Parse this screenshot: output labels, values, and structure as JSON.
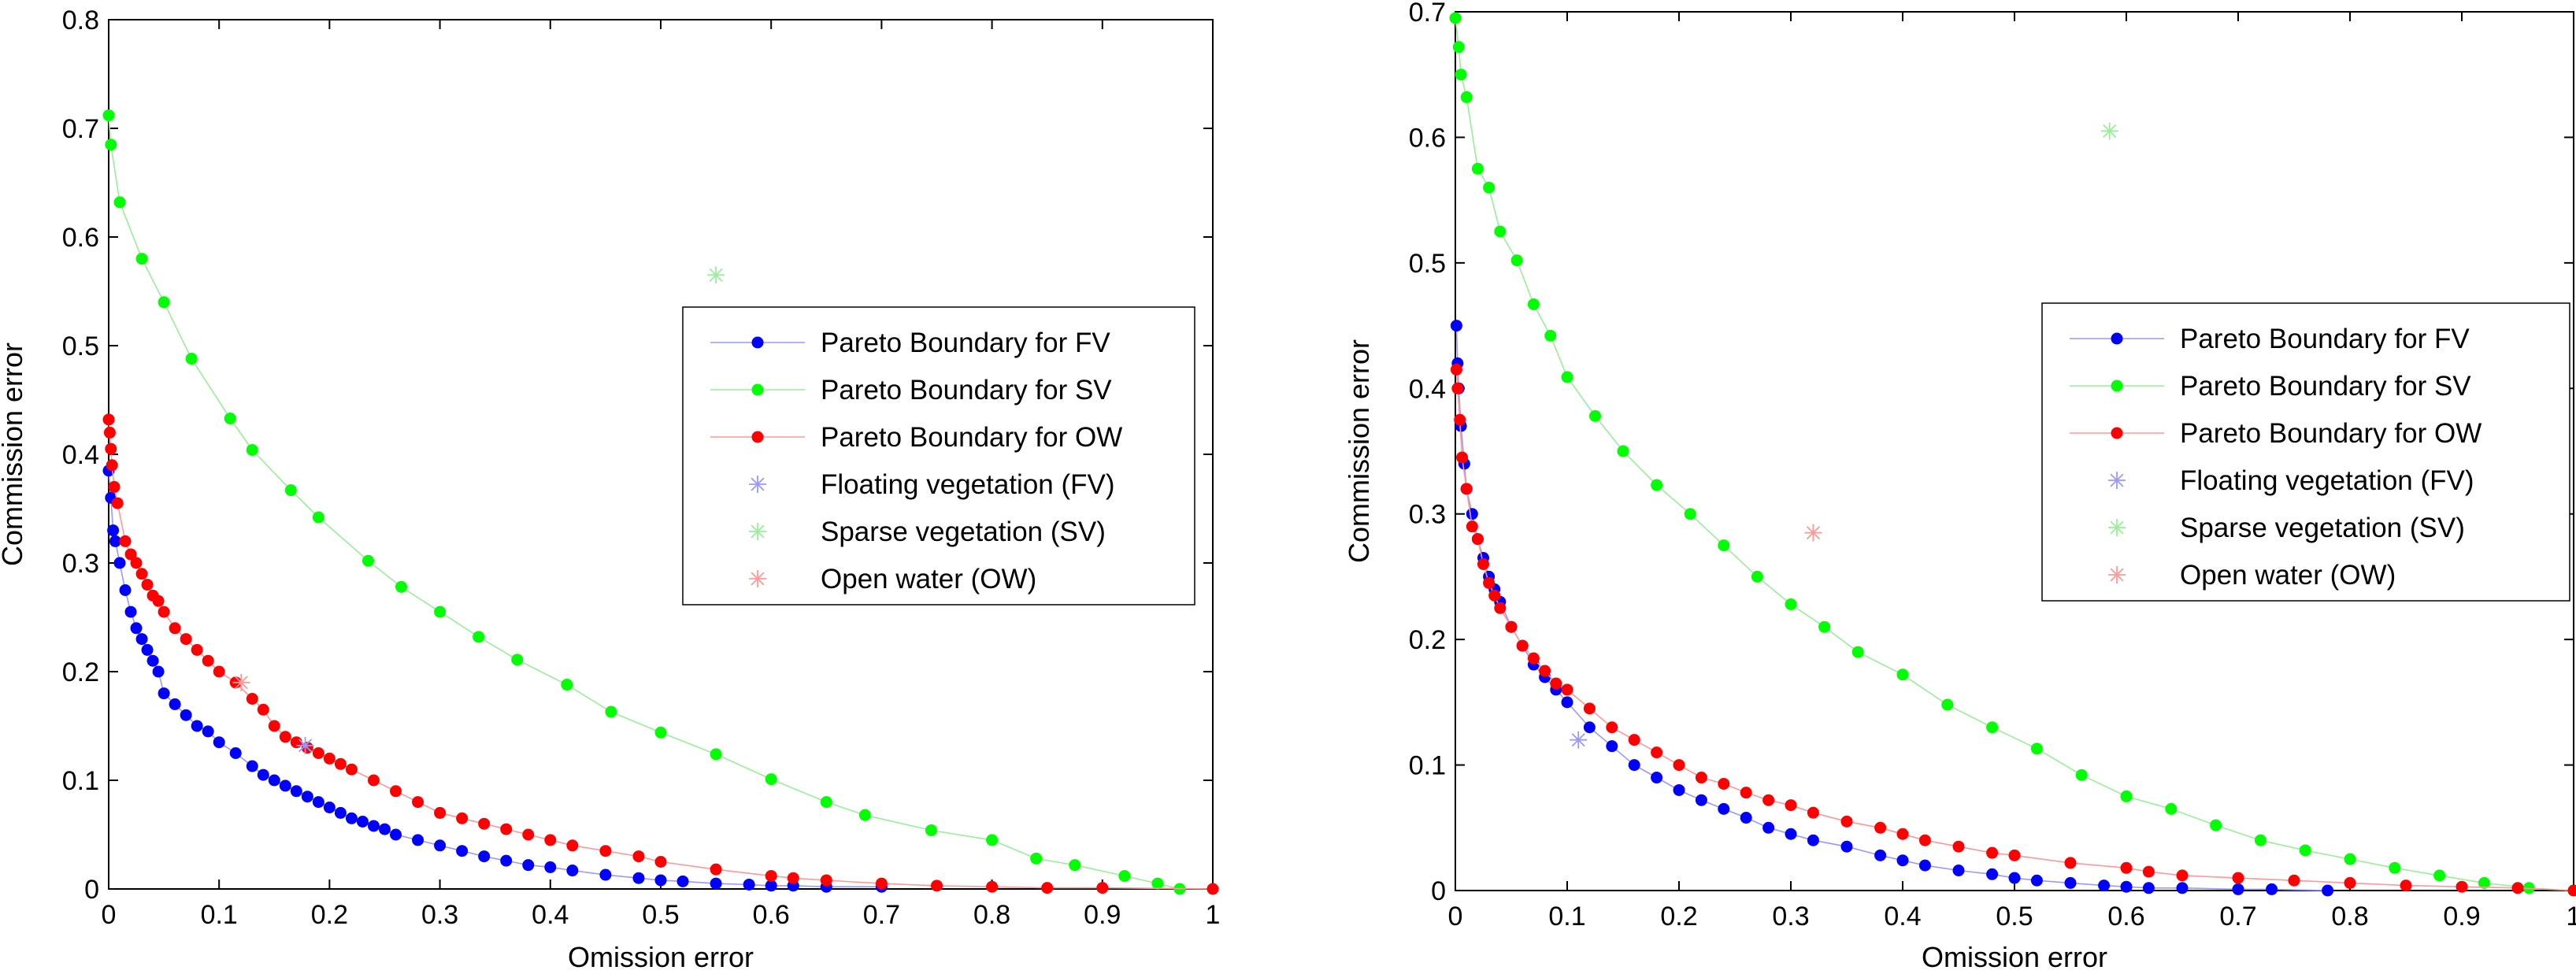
{
  "colors": {
    "fv": "#0000ff",
    "fv_line": "#9999ff",
    "sv": "#00ff00",
    "sv_line": "#99ee99",
    "ow": "#ff0000",
    "ow_line": "#ff9999",
    "axis": "#000000",
    "legend_border": "#000000"
  },
  "chart_data": [
    {
      "type": "scatter",
      "xlabel": "Omission error",
      "ylabel": "Commission error",
      "xlim": [
        0,
        1
      ],
      "ylim": [
        0,
        0.8
      ],
      "xticks": [
        "0",
        "0.1",
        "0.2",
        "0.3",
        "0.4",
        "0.5",
        "0.6",
        "0.7",
        "0.8",
        "0.9",
        "1"
      ],
      "yticks": [
        "0",
        "0.1",
        "0.2",
        "0.3",
        "0.4",
        "0.5",
        "0.6",
        "0.7",
        "0.8"
      ],
      "grid": false,
      "legend_position": "center-right",
      "legend": [
        "Pareto Boundary for FV",
        "Pareto Boundary for SV",
        "Pareto Boundary for OW",
        "Floating vegetation (FV)",
        "Sparse vegetation (SV)",
        "Open water (OW)"
      ],
      "series": [
        {
          "name": "Pareto Boundary for FV",
          "key": "fv",
          "style": "line-dots",
          "x": [
            0,
            0.002,
            0.004,
            0.006,
            0.01,
            0.015,
            0.02,
            0.025,
            0.03,
            0.035,
            0.04,
            0.045,
            0.05,
            0.06,
            0.07,
            0.08,
            0.09,
            0.1,
            0.115,
            0.13,
            0.14,
            0.15,
            0.16,
            0.17,
            0.18,
            0.19,
            0.2,
            0.21,
            0.22,
            0.23,
            0.24,
            0.25,
            0.26,
            0.28,
            0.3,
            0.32,
            0.34,
            0.36,
            0.38,
            0.4,
            0.42,
            0.45,
            0.48,
            0.5,
            0.52,
            0.55,
            0.58,
            0.6,
            0.62,
            0.65,
            0.7
          ],
          "y": [
            0.385,
            0.36,
            0.33,
            0.32,
            0.3,
            0.275,
            0.255,
            0.24,
            0.23,
            0.22,
            0.21,
            0.2,
            0.18,
            0.17,
            0.16,
            0.15,
            0.145,
            0.135,
            0.125,
            0.113,
            0.105,
            0.1,
            0.095,
            0.09,
            0.085,
            0.08,
            0.075,
            0.07,
            0.065,
            0.062,
            0.058,
            0.055,
            0.05,
            0.045,
            0.04,
            0.035,
            0.03,
            0.026,
            0.022,
            0.02,
            0.017,
            0.013,
            0.01,
            0.008,
            0.007,
            0.005,
            0.004,
            0.003,
            0.003,
            0.002,
            0.002
          ]
        },
        {
          "name": "Pareto Boundary for SV",
          "key": "sv",
          "style": "line-dots",
          "x": [
            0,
            0.002,
            0.01,
            0.03,
            0.05,
            0.075,
            0.11,
            0.13,
            0.165,
            0.19,
            0.235,
            0.265,
            0.3,
            0.335,
            0.37,
            0.415,
            0.455,
            0.5,
            0.55,
            0.6,
            0.65,
            0.685,
            0.745,
            0.8,
            0.84,
            0.875,
            0.92,
            0.95,
            0.97
          ],
          "y": [
            0.712,
            0.685,
            0.632,
            0.58,
            0.54,
            0.488,
            0.433,
            0.404,
            0.367,
            0.342,
            0.302,
            0.278,
            0.255,
            0.232,
            0.211,
            0.188,
            0.163,
            0.144,
            0.124,
            0.101,
            0.08,
            0.068,
            0.054,
            0.045,
            0.028,
            0.022,
            0.012,
            0.005,
            0
          ]
        },
        {
          "name": "Pareto Boundary for OW",
          "key": "ow",
          "style": "line-dots",
          "x": [
            0,
            0.001,
            0.002,
            0.003,
            0.005,
            0.008,
            0.015,
            0.02,
            0.025,
            0.03,
            0.035,
            0.04,
            0.045,
            0.05,
            0.06,
            0.07,
            0.08,
            0.09,
            0.1,
            0.115,
            0.13,
            0.14,
            0.15,
            0.16,
            0.17,
            0.18,
            0.19,
            0.2,
            0.21,
            0.22,
            0.24,
            0.26,
            0.28,
            0.3,
            0.32,
            0.34,
            0.36,
            0.38,
            0.4,
            0.42,
            0.45,
            0.48,
            0.5,
            0.55,
            0.6,
            0.62,
            0.65,
            0.7,
            0.75,
            0.8,
            0.85,
            0.9,
            1
          ],
          "y": [
            0.432,
            0.42,
            0.405,
            0.39,
            0.37,
            0.355,
            0.32,
            0.308,
            0.3,
            0.29,
            0.28,
            0.27,
            0.265,
            0.255,
            0.24,
            0.23,
            0.22,
            0.21,
            0.2,
            0.19,
            0.175,
            0.165,
            0.15,
            0.14,
            0.135,
            0.13,
            0.125,
            0.12,
            0.115,
            0.11,
            0.1,
            0.09,
            0.08,
            0.07,
            0.065,
            0.06,
            0.055,
            0.05,
            0.045,
            0.04,
            0.035,
            0.03,
            0.025,
            0.018,
            0.012,
            0.01,
            0.008,
            0.005,
            0.003,
            0.002,
            0.001,
            0.001,
            0
          ]
        },
        {
          "name": "Floating vegetation (FV)",
          "key": "fv",
          "style": "star",
          "x": [
            0.178
          ],
          "y": [
            0.132
          ]
        },
        {
          "name": "Sparse vegetation (SV)",
          "key": "sv",
          "style": "star",
          "x": [
            0.55
          ],
          "y": [
            0.565
          ]
        },
        {
          "name": "Open water (OW)",
          "key": "ow",
          "style": "star",
          "x": [
            0.12
          ],
          "y": [
            0.19
          ]
        }
      ]
    },
    {
      "type": "scatter",
      "xlabel": "Omission error",
      "ylabel": "Commission error",
      "xlim": [
        0,
        1
      ],
      "ylim": [
        0,
        0.7
      ],
      "xticks": [
        "0",
        "0.1",
        "0.2",
        "0.3",
        "0.4",
        "0.5",
        "0.6",
        "0.7",
        "0.8",
        "0.9",
        "1"
      ],
      "yticks": [
        "0",
        "0.1",
        "0.2",
        "0.3",
        "0.4",
        "0.5",
        "0.6",
        "0.7"
      ],
      "grid": false,
      "legend_position": "center-right",
      "legend": [
        "Pareto Boundary for FV",
        "Pareto Boundary for SV",
        "Pareto Boundary for OW",
        "Floating vegetation (FV)",
        "Sparse vegetation (SV)",
        "Open water (OW)"
      ],
      "series": [
        {
          "name": "Pareto Boundary for FV",
          "key": "fv",
          "style": "line-dots",
          "x": [
            0.001,
            0.002,
            0.003,
            0.005,
            0.008,
            0.01,
            0.015,
            0.02,
            0.025,
            0.03,
            0.035,
            0.04,
            0.05,
            0.06,
            0.07,
            0.08,
            0.09,
            0.1,
            0.12,
            0.14,
            0.16,
            0.18,
            0.2,
            0.22,
            0.24,
            0.26,
            0.28,
            0.3,
            0.32,
            0.35,
            0.38,
            0.4,
            0.42,
            0.45,
            0.48,
            0.5,
            0.52,
            0.55,
            0.58,
            0.6,
            0.62,
            0.65,
            0.7,
            0.73,
            0.78
          ],
          "y": [
            0.45,
            0.42,
            0.4,
            0.37,
            0.34,
            0.32,
            0.3,
            0.28,
            0.265,
            0.25,
            0.24,
            0.23,
            0.21,
            0.195,
            0.18,
            0.17,
            0.16,
            0.15,
            0.13,
            0.115,
            0.1,
            0.09,
            0.08,
            0.072,
            0.065,
            0.058,
            0.05,
            0.045,
            0.04,
            0.035,
            0.028,
            0.024,
            0.02,
            0.016,
            0.013,
            0.01,
            0.008,
            0.006,
            0.004,
            0.003,
            0.002,
            0.002,
            0.001,
            0.001,
            0
          ]
        },
        {
          "name": "Pareto Boundary for SV",
          "key": "sv",
          "style": "line-dots",
          "x": [
            0,
            0.003,
            0.005,
            0.01,
            0.02,
            0.03,
            0.04,
            0.055,
            0.07,
            0.085,
            0.1,
            0.125,
            0.15,
            0.18,
            0.21,
            0.24,
            0.27,
            0.3,
            0.33,
            0.36,
            0.4,
            0.44,
            0.48,
            0.52,
            0.56,
            0.6,
            0.64,
            0.68,
            0.72,
            0.76,
            0.8,
            0.84,
            0.88,
            0.92,
            0.96,
            1
          ],
          "y": [
            0.695,
            0.672,
            0.65,
            0.632,
            0.575,
            0.56,
            0.525,
            0.502,
            0.467,
            0.442,
            0.409,
            0.378,
            0.35,
            0.323,
            0.3,
            0.275,
            0.25,
            0.228,
            0.21,
            0.19,
            0.172,
            0.148,
            0.13,
            0.113,
            0.092,
            0.075,
            0.065,
            0.052,
            0.04,
            0.032,
            0.025,
            0.018,
            0.012,
            0.006,
            0.002,
            0
          ]
        },
        {
          "name": "Pareto Boundary for OW",
          "key": "ow",
          "style": "line-dots",
          "x": [
            0.001,
            0.002,
            0.004,
            0.006,
            0.01,
            0.015,
            0.02,
            0.025,
            0.03,
            0.035,
            0.04,
            0.05,
            0.06,
            0.07,
            0.08,
            0.09,
            0.1,
            0.12,
            0.14,
            0.16,
            0.18,
            0.2,
            0.22,
            0.24,
            0.26,
            0.28,
            0.3,
            0.32,
            0.35,
            0.38,
            0.4,
            0.42,
            0.45,
            0.48,
            0.5,
            0.55,
            0.6,
            0.62,
            0.65,
            0.7,
            0.75,
            0.8,
            0.85,
            0.9,
            0.95,
            1
          ],
          "y": [
            0.415,
            0.4,
            0.375,
            0.345,
            0.32,
            0.29,
            0.28,
            0.26,
            0.245,
            0.235,
            0.225,
            0.21,
            0.195,
            0.185,
            0.175,
            0.165,
            0.16,
            0.145,
            0.13,
            0.12,
            0.11,
            0.1,
            0.09,
            0.085,
            0.078,
            0.072,
            0.068,
            0.062,
            0.055,
            0.05,
            0.045,
            0.04,
            0.035,
            0.03,
            0.028,
            0.022,
            0.018,
            0.015,
            0.012,
            0.01,
            0.008,
            0.006,
            0.004,
            0.003,
            0.002,
            0
          ]
        },
        {
          "name": "Floating vegetation (FV)",
          "key": "fv",
          "style": "star",
          "x": [
            0.11
          ],
          "y": [
            0.12
          ]
        },
        {
          "name": "Sparse vegetation (SV)",
          "key": "sv",
          "style": "star",
          "x": [
            0.585
          ],
          "y": [
            0.605
          ]
        },
        {
          "name": "Open water (OW)",
          "key": "ow",
          "style": "star",
          "x": [
            0.32
          ],
          "y": [
            0.285
          ]
        }
      ]
    }
  ]
}
